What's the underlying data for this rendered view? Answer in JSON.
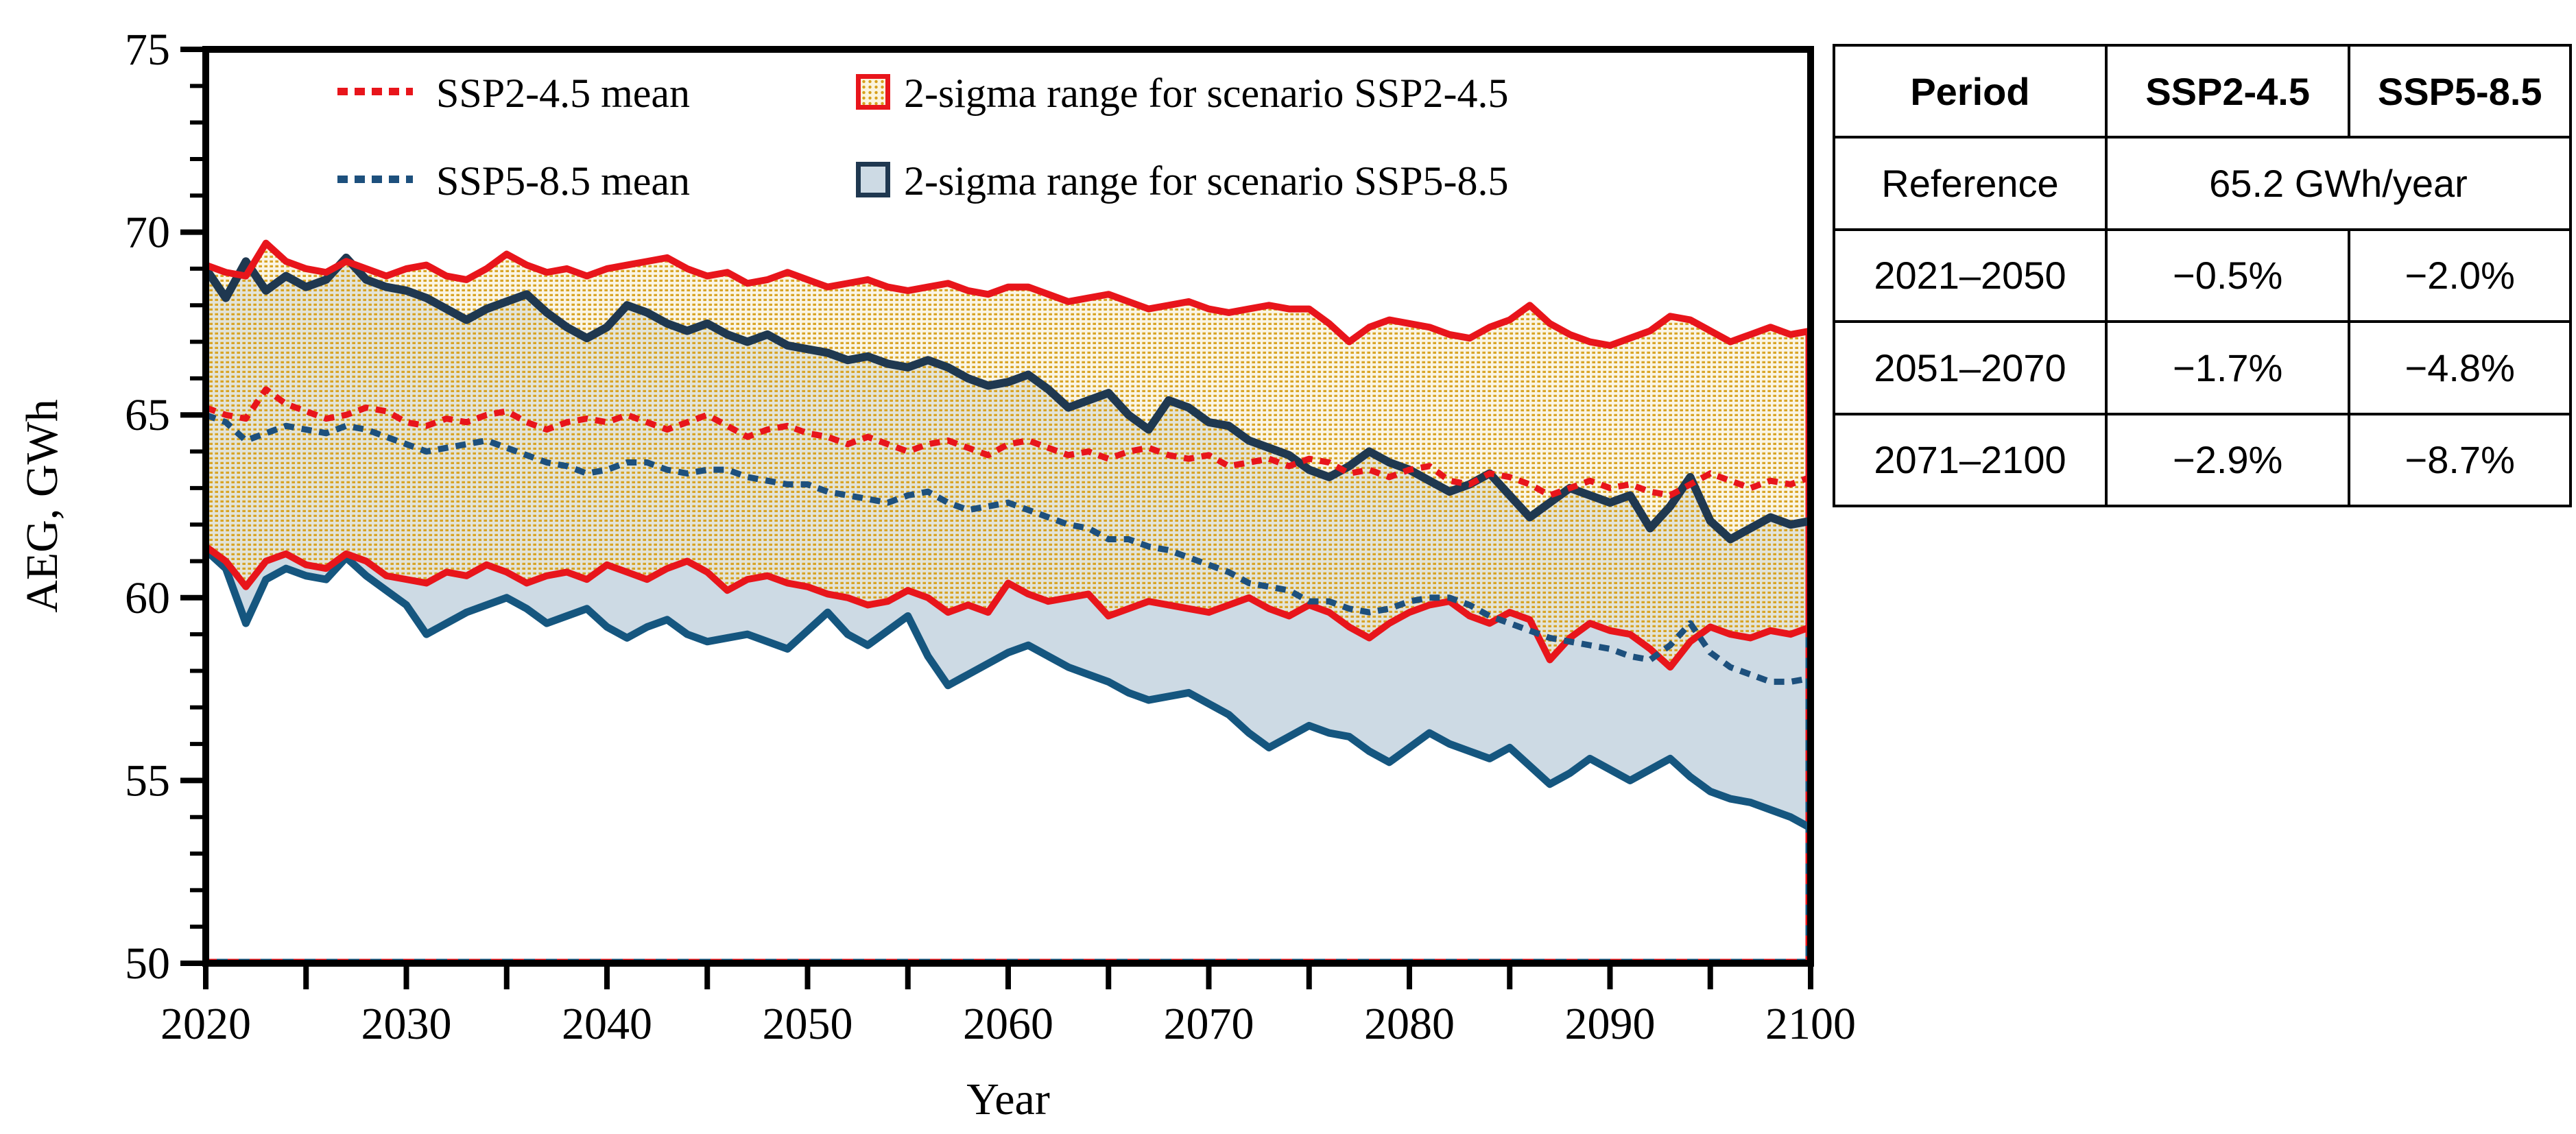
{
  "legend": {
    "items": [
      {
        "label": "SSP2-4.5 mean",
        "swatch": "red-dotted-line-icon"
      },
      {
        "label": "2-sigma range for scenario SSP2-4.5",
        "swatch": "red-patterned-square-icon"
      },
      {
        "label": "SSP5-8.5 mean",
        "swatch": "blue-dotted-line-icon"
      },
      {
        "label": "2-sigma range for scenario SSP5-8.5",
        "swatch": "blue-filled-square-icon"
      }
    ]
  },
  "table": {
    "header": [
      "Period",
      "SSP2-4.5",
      "SSP5-8.5"
    ],
    "reference_row": {
      "label": "Reference",
      "value": "65.2 GWh/year"
    },
    "rows": [
      {
        "period": "2021–2050",
        "ssp245": "−0.5%",
        "ssp585": "−2.0%"
      },
      {
        "period": "2051–2070",
        "ssp245": "−1.7%",
        "ssp585": "−4.8%"
      },
      {
        "period": "2071–2100",
        "ssp245": "−2.9%",
        "ssp585": "−8.7%"
      }
    ]
  },
  "chart_data": {
    "type": "line",
    "xlabel": "Year",
    "ylabel": "AEG, GWh",
    "xlim": [
      2020,
      2100
    ],
    "ylim": [
      50,
      75
    ],
    "x_start": 2020,
    "x_step": 1,
    "x_ticks": [
      2020,
      2030,
      2040,
      2050,
      2060,
      2070,
      2080,
      2090,
      2100
    ],
    "x_minor_step": 5,
    "y_ticks": [
      50,
      55,
      60,
      65,
      70,
      75
    ],
    "y_minor_step": 1,
    "grid": false,
    "legend_position": "top-inside",
    "colors": {
      "red": "#E8151B",
      "navy_upper": "#1F3850",
      "blue_lower": "#15567F",
      "blue_mean": "#1D507D",
      "blue_fill": "#CDDAE4",
      "gold_dot": "#D7A01C",
      "cream": "#F6EDCD",
      "axis": "#000000"
    },
    "bands": [
      {
        "name": "2-sigma range for scenario SSP5-8.5",
        "fill": "blue",
        "upper_color": "#1F3850",
        "lower_color": "#15567F",
        "upper": [
          69.0,
          68.2,
          69.2,
          68.4,
          68.8,
          68.5,
          68.7,
          69.3,
          68.7,
          68.5,
          68.4,
          68.2,
          67.9,
          67.6,
          67.9,
          68.1,
          68.3,
          67.8,
          67.4,
          67.1,
          67.4,
          68.0,
          67.8,
          67.5,
          67.3,
          67.5,
          67.2,
          67.0,
          67.2,
          66.9,
          66.8,
          66.7,
          66.5,
          66.6,
          66.4,
          66.3,
          66.5,
          66.3,
          66.0,
          65.8,
          65.9,
          66.1,
          65.7,
          65.2,
          65.4,
          65.6,
          65.0,
          64.6,
          65.4,
          65.2,
          64.8,
          64.7,
          64.3,
          64.1,
          63.9,
          63.5,
          63.3,
          63.6,
          64.0,
          63.7,
          63.5,
          63.2,
          62.9,
          63.1,
          63.4,
          62.8,
          62.2,
          62.6,
          63.0,
          62.8,
          62.6,
          62.8,
          61.9,
          62.5,
          63.3,
          62.1,
          61.6,
          61.9,
          62.2,
          62.0,
          62.1
        ],
        "lower": [
          61.3,
          60.8,
          59.3,
          60.5,
          60.8,
          60.6,
          60.5,
          61.1,
          60.6,
          60.2,
          59.8,
          59.0,
          59.3,
          59.6,
          59.8,
          60.0,
          59.7,
          59.3,
          59.5,
          59.7,
          59.2,
          58.9,
          59.2,
          59.4,
          59.0,
          58.8,
          58.9,
          59.0,
          58.8,
          58.6,
          59.1,
          59.6,
          59.0,
          58.7,
          59.1,
          59.5,
          58.4,
          57.6,
          57.9,
          58.2,
          58.5,
          58.7,
          58.4,
          58.1,
          57.9,
          57.7,
          57.4,
          57.2,
          57.3,
          57.4,
          57.1,
          56.8,
          56.3,
          55.9,
          56.2,
          56.5,
          56.3,
          56.2,
          55.8,
          55.5,
          55.9,
          56.3,
          56.0,
          55.8,
          55.6,
          55.9,
          55.4,
          54.9,
          55.2,
          55.6,
          55.3,
          55.0,
          55.3,
          55.6,
          55.1,
          54.7,
          54.5,
          54.4,
          54.2,
          54.0,
          53.7
        ]
      },
      {
        "name": "2-sigma range for scenario SSP2-4.5",
        "fill": "gold-dots",
        "upper_color": "#E8151B",
        "lower_color": "#E8151B",
        "upper": [
          69.1,
          68.9,
          68.8,
          69.7,
          69.2,
          69.0,
          68.9,
          69.2,
          69.0,
          68.8,
          69.0,
          69.1,
          68.8,
          68.7,
          69.0,
          69.4,
          69.1,
          68.9,
          69.0,
          68.8,
          69.0,
          69.1,
          69.2,
          69.3,
          69.0,
          68.8,
          68.9,
          68.6,
          68.7,
          68.9,
          68.7,
          68.5,
          68.6,
          68.7,
          68.5,
          68.4,
          68.5,
          68.6,
          68.4,
          68.3,
          68.5,
          68.5,
          68.3,
          68.1,
          68.2,
          68.3,
          68.1,
          67.9,
          68.0,
          68.1,
          67.9,
          67.8,
          67.9,
          68.0,
          67.9,
          67.9,
          67.5,
          67.0,
          67.4,
          67.6,
          67.5,
          67.4,
          67.2,
          67.1,
          67.4,
          67.6,
          68.0,
          67.5,
          67.2,
          67.0,
          66.9,
          67.1,
          67.3,
          67.7,
          67.6,
          67.3,
          67.0,
          67.2,
          67.4,
          67.2,
          67.3
        ],
        "lower": [
          61.4,
          61.0,
          60.3,
          61.0,
          61.2,
          60.9,
          60.8,
          61.2,
          61.0,
          60.6,
          60.5,
          60.4,
          60.7,
          60.6,
          60.9,
          60.7,
          60.4,
          60.6,
          60.7,
          60.5,
          60.9,
          60.7,
          60.5,
          60.8,
          61.0,
          60.7,
          60.2,
          60.5,
          60.6,
          60.4,
          60.3,
          60.1,
          60.0,
          59.8,
          59.9,
          60.2,
          60.0,
          59.6,
          59.8,
          59.6,
          60.4,
          60.1,
          59.9,
          60.0,
          60.1,
          59.5,
          59.7,
          59.9,
          59.8,
          59.7,
          59.6,
          59.8,
          60.0,
          59.7,
          59.5,
          59.8,
          59.6,
          59.2,
          58.9,
          59.3,
          59.6,
          59.8,
          59.9,
          59.5,
          59.3,
          59.6,
          59.4,
          58.3,
          58.9,
          59.3,
          59.1,
          59.0,
          58.6,
          58.1,
          58.8,
          59.2,
          59.0,
          58.9,
          59.1,
          59.0,
          59.2
        ]
      }
    ],
    "series": [
      {
        "name": "SSP2-4.5 mean",
        "style": "dotted",
        "color": "#E8151B",
        "values": [
          65.2,
          65.0,
          64.9,
          65.7,
          65.3,
          65.1,
          64.9,
          65.0,
          65.2,
          65.1,
          64.8,
          64.7,
          64.9,
          64.8,
          65.0,
          65.1,
          64.8,
          64.6,
          64.8,
          64.9,
          64.8,
          65.0,
          64.8,
          64.6,
          64.8,
          65.0,
          64.7,
          64.4,
          64.6,
          64.7,
          64.5,
          64.4,
          64.2,
          64.4,
          64.2,
          64.0,
          64.2,
          64.3,
          64.1,
          63.9,
          64.2,
          64.3,
          64.1,
          63.9,
          64.0,
          63.8,
          64.0,
          64.1,
          63.9,
          63.8,
          63.9,
          63.6,
          63.7,
          63.8,
          63.6,
          63.8,
          63.7,
          63.4,
          63.5,
          63.3,
          63.5,
          63.6,
          63.2,
          63.1,
          63.4,
          63.3,
          63.1,
          62.8,
          63.0,
          63.2,
          63.0,
          63.1,
          62.9,
          62.8,
          63.1,
          63.4,
          63.2,
          63.0,
          63.2,
          63.1,
          63.3
        ]
      },
      {
        "name": "SSP5-8.5 mean",
        "style": "dotted",
        "color": "#1D507D",
        "values": [
          65.0,
          64.8,
          64.3,
          64.5,
          64.7,
          64.6,
          64.5,
          64.7,
          64.6,
          64.4,
          64.2,
          64.0,
          64.1,
          64.2,
          64.3,
          64.1,
          63.9,
          63.7,
          63.6,
          63.4,
          63.5,
          63.7,
          63.7,
          63.5,
          63.4,
          63.5,
          63.5,
          63.3,
          63.2,
          63.1,
          63.1,
          62.9,
          62.8,
          62.7,
          62.6,
          62.8,
          62.9,
          62.6,
          62.4,
          62.5,
          62.6,
          62.4,
          62.2,
          62.0,
          61.9,
          61.6,
          61.6,
          61.4,
          61.3,
          61.1,
          60.9,
          60.7,
          60.4,
          60.3,
          60.2,
          59.9,
          59.9,
          59.7,
          59.6,
          59.7,
          59.9,
          60.0,
          60.0,
          59.8,
          59.5,
          59.3,
          59.1,
          58.9,
          58.8,
          58.7,
          58.6,
          58.4,
          58.3,
          58.7,
          59.3,
          58.5,
          58.1,
          57.9,
          57.7,
          57.7,
          57.8
        ]
      }
    ]
  }
}
